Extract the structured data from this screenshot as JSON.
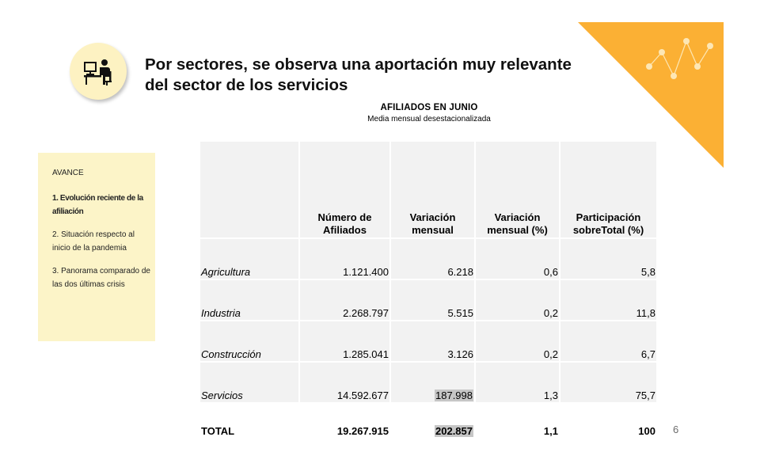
{
  "title": "Por sectores, se observa una aportación muy relevante del sector de los servicios",
  "table_title": "AFILIADOS  EN JUNIO",
  "table_subtitle": "Media mensual desestacionalizada",
  "sidebar": {
    "header": "AVANCE",
    "items": [
      {
        "label": "1. Evolución reciente de la afiliación",
        "active": true
      },
      {
        "label": "2. Situación respecto al inicio de la pandemia",
        "active": false
      },
      {
        "label": "3. Panorama comparado de las dos últimas crisis",
        "active": false
      }
    ]
  },
  "table": {
    "headers": [
      "",
      "Número de Afiliados",
      "Variación mensual",
      "Variación mensual (%)",
      "Participación sobreTotal (%)"
    ],
    "rows": [
      {
        "sector": "Agricultura",
        "afiliados": "1.121.400",
        "variacion": "6.218",
        "variacion_pct": "0,6",
        "participacion": "5,8"
      },
      {
        "sector": "Industria",
        "afiliados": "2.268.797",
        "variacion": "5.515",
        "variacion_pct": "0,2",
        "participacion": "11,8"
      },
      {
        "sector": "Construcción",
        "afiliados": "1.285.041",
        "variacion": "3.126",
        "variacion_pct": "0,2",
        "participacion": "6,7"
      },
      {
        "sector": "Servicios",
        "afiliados": "14.592.677",
        "variacion": "187.998",
        "variacion_pct": "1,3",
        "participacion": "75,7"
      }
    ],
    "total": {
      "sector": "TOTAL",
      "afiliados": "19.267.915",
      "variacion": "202.857",
      "variacion_pct": "1,1",
      "participacion": "100"
    }
  },
  "page_number": "6",
  "colors": {
    "accent": "#fbb034",
    "sidebar_bg": "#fcf4c8",
    "table_bg": "#f2f2f2",
    "highlight": "#c6c6c6"
  },
  "icons": [
    "person-at-computer-icon",
    "line-chart-icon"
  ]
}
